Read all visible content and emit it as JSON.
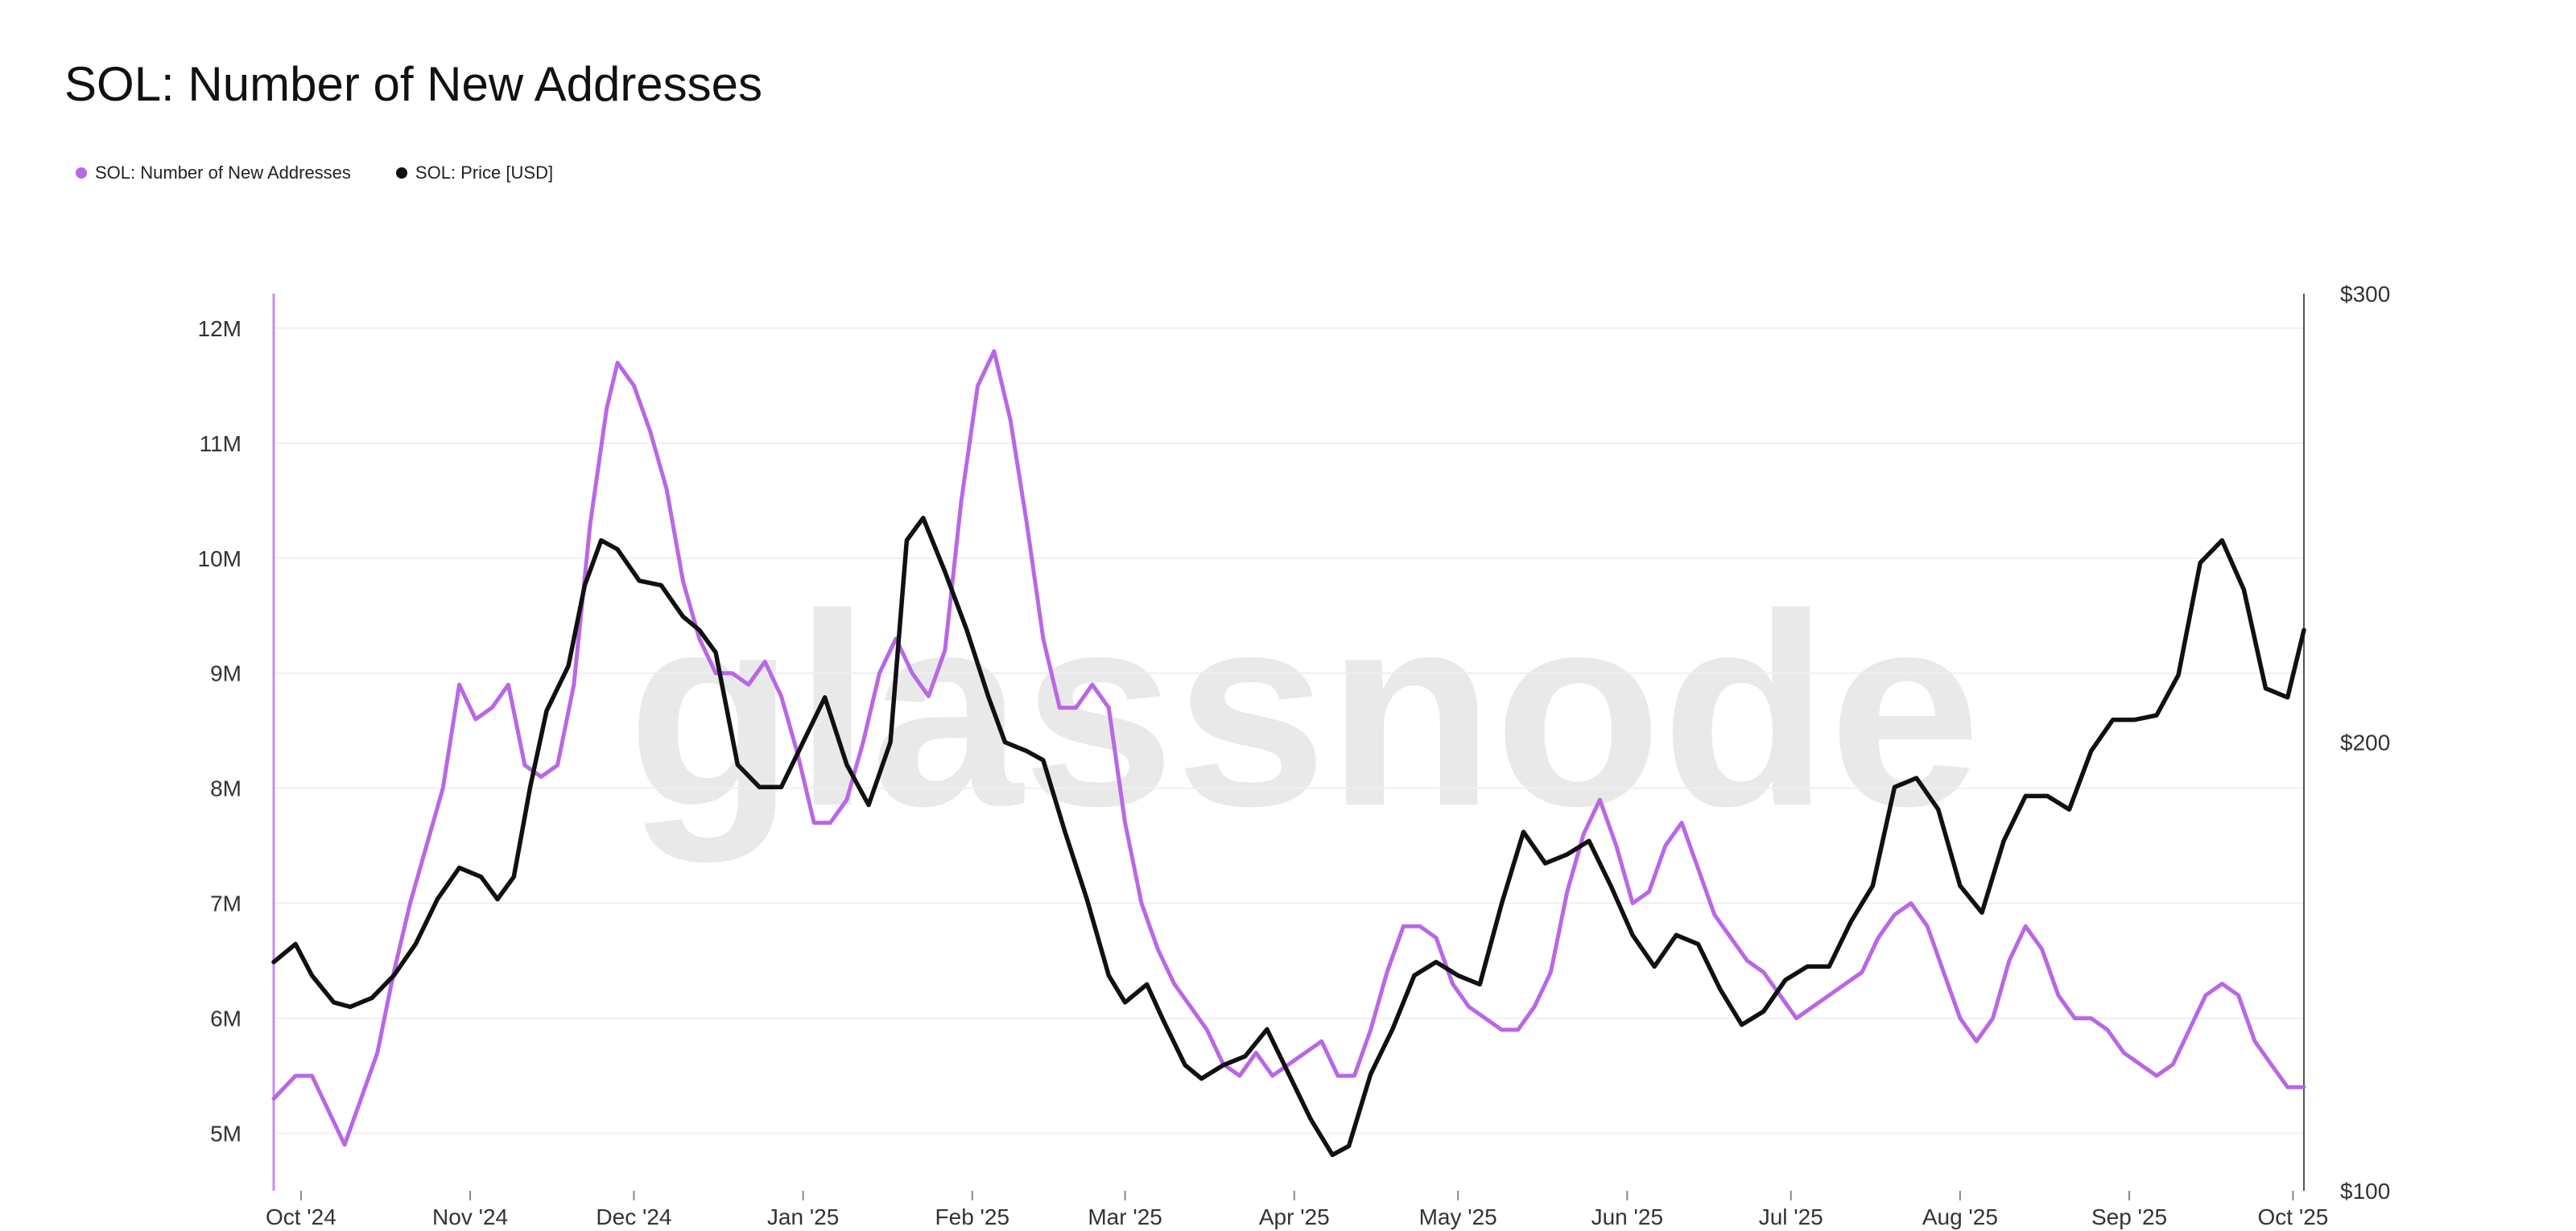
{
  "chart_data": {
    "type": "line",
    "title": "SOL: Number of New Addresses",
    "watermark": "glassnode",
    "legend": [
      {
        "label": "SOL: Number of New Addresses",
        "color": "#b967e6"
      },
      {
        "label": "SOL: Price [USD]",
        "color": "#111111"
      }
    ],
    "x_tick_labels": [
      "Oct '24",
      "Nov '24",
      "Dec '24",
      "Jan '25",
      "Feb '25",
      "Mar '25",
      "Apr '25",
      "May '25",
      "Jun '25",
      "Jul '25",
      "Aug '25",
      "Sep '25",
      "Oct '25"
    ],
    "x_ticks": [
      "2024-10-01",
      "2024-11-01",
      "2024-12-01",
      "2025-01-01",
      "2025-02-01",
      "2025-03-01",
      "2025-04-01",
      "2025-05-01",
      "2025-06-01",
      "2025-07-01",
      "2025-08-01",
      "2025-09-01",
      "2025-10-01"
    ],
    "x_range": [
      "2024-09-26",
      "2025-10-03"
    ],
    "y_left": {
      "ticks": [
        5,
        6,
        7,
        8,
        9,
        10,
        11,
        12
      ],
      "tick_labels": [
        "5M",
        "6M",
        "7M",
        "8M",
        "9M",
        "10M",
        "11M",
        "12M"
      ],
      "lim": [
        4.5,
        12.3
      ],
      "unit": "millions"
    },
    "y_right": {
      "ticks": [
        100,
        200,
        300
      ],
      "tick_labels": [
        "$100",
        "$200",
        "$300"
      ],
      "lim": [
        100,
        300
      ]
    },
    "grid": "horizontal",
    "series": [
      {
        "name": "SOL: Number of New Addresses",
        "color": "#b967e6",
        "axis": "left",
        "points": [
          [
            "2024-09-26",
            5.3
          ],
          [
            "2024-09-30",
            5.5
          ],
          [
            "2024-10-03",
            5.5
          ],
          [
            "2024-10-06",
            5.2
          ],
          [
            "2024-10-09",
            4.9
          ],
          [
            "2024-10-12",
            5.3
          ],
          [
            "2024-10-15",
            5.7
          ],
          [
            "2024-10-18",
            6.4
          ],
          [
            "2024-10-21",
            7.0
          ],
          [
            "2024-10-24",
            7.5
          ],
          [
            "2024-10-27",
            8.0
          ],
          [
            "2024-10-30",
            8.9
          ],
          [
            "2024-11-02",
            8.6
          ],
          [
            "2024-11-05",
            8.7
          ],
          [
            "2024-11-08",
            8.9
          ],
          [
            "2024-11-11",
            8.2
          ],
          [
            "2024-11-14",
            8.1
          ],
          [
            "2024-11-17",
            8.2
          ],
          [
            "2024-11-20",
            8.9
          ],
          [
            "2024-11-23",
            10.3
          ],
          [
            "2024-11-26",
            11.3
          ],
          [
            "2024-11-28",
            11.7
          ],
          [
            "2024-12-01",
            11.5
          ],
          [
            "2024-12-04",
            11.1
          ],
          [
            "2024-12-07",
            10.6
          ],
          [
            "2024-12-10",
            9.8
          ],
          [
            "2024-12-13",
            9.3
          ],
          [
            "2024-12-16",
            9.0
          ],
          [
            "2024-12-19",
            9.0
          ],
          [
            "2024-12-22",
            8.9
          ],
          [
            "2024-12-25",
            9.1
          ],
          [
            "2024-12-28",
            8.8
          ],
          [
            "2024-12-31",
            8.3
          ],
          [
            "2025-01-03",
            7.7
          ],
          [
            "2025-01-06",
            7.7
          ],
          [
            "2025-01-09",
            7.9
          ],
          [
            "2025-01-12",
            8.4
          ],
          [
            "2025-01-15",
            9.0
          ],
          [
            "2025-01-18",
            9.3
          ],
          [
            "2025-01-21",
            9.0
          ],
          [
            "2025-01-24",
            8.8
          ],
          [
            "2025-01-27",
            9.2
          ],
          [
            "2025-01-30",
            10.5
          ],
          [
            "2025-02-02",
            11.5
          ],
          [
            "2025-02-05",
            11.8
          ],
          [
            "2025-02-08",
            11.2
          ],
          [
            "2025-02-11",
            10.3
          ],
          [
            "2025-02-14",
            9.3
          ],
          [
            "2025-02-17",
            8.7
          ],
          [
            "2025-02-20",
            8.7
          ],
          [
            "2025-02-23",
            8.9
          ],
          [
            "2025-02-26",
            8.7
          ],
          [
            "2025-03-01",
            7.7
          ],
          [
            "2025-03-04",
            7.0
          ],
          [
            "2025-03-07",
            6.6
          ],
          [
            "2025-03-10",
            6.3
          ],
          [
            "2025-03-13",
            6.1
          ],
          [
            "2025-03-16",
            5.9
          ],
          [
            "2025-03-19",
            5.6
          ],
          [
            "2025-03-22",
            5.5
          ],
          [
            "2025-03-25",
            5.7
          ],
          [
            "2025-03-28",
            5.5
          ],
          [
            "2025-03-31",
            5.6
          ],
          [
            "2025-04-03",
            5.7
          ],
          [
            "2025-04-06",
            5.8
          ],
          [
            "2025-04-09",
            5.5
          ],
          [
            "2025-04-12",
            5.5
          ],
          [
            "2025-04-15",
            5.9
          ],
          [
            "2025-04-18",
            6.4
          ],
          [
            "2025-04-21",
            6.8
          ],
          [
            "2025-04-24",
            6.8
          ],
          [
            "2025-04-27",
            6.7
          ],
          [
            "2025-04-30",
            6.3
          ],
          [
            "2025-05-03",
            6.1
          ],
          [
            "2025-05-06",
            6.0
          ],
          [
            "2025-05-09",
            5.9
          ],
          [
            "2025-05-12",
            5.9
          ],
          [
            "2025-05-15",
            6.1
          ],
          [
            "2025-05-18",
            6.4
          ],
          [
            "2025-05-21",
            7.1
          ],
          [
            "2025-05-24",
            7.6
          ],
          [
            "2025-05-27",
            7.9
          ],
          [
            "2025-05-30",
            7.5
          ],
          [
            "2025-06-02",
            7.0
          ],
          [
            "2025-06-05",
            7.1
          ],
          [
            "2025-06-08",
            7.5
          ],
          [
            "2025-06-11",
            7.7
          ],
          [
            "2025-06-14",
            7.3
          ],
          [
            "2025-06-17",
            6.9
          ],
          [
            "2025-06-20",
            6.7
          ],
          [
            "2025-06-23",
            6.5
          ],
          [
            "2025-06-26",
            6.4
          ],
          [
            "2025-06-29",
            6.2
          ],
          [
            "2025-07-02",
            6.0
          ],
          [
            "2025-07-05",
            6.1
          ],
          [
            "2025-07-08",
            6.2
          ],
          [
            "2025-07-11",
            6.3
          ],
          [
            "2025-07-14",
            6.4
          ],
          [
            "2025-07-17",
            6.7
          ],
          [
            "2025-07-20",
            6.9
          ],
          [
            "2025-07-23",
            7.0
          ],
          [
            "2025-07-26",
            6.8
          ],
          [
            "2025-07-29",
            6.4
          ],
          [
            "2025-08-01",
            6.0
          ],
          [
            "2025-08-04",
            5.8
          ],
          [
            "2025-08-07",
            6.0
          ],
          [
            "2025-08-10",
            6.5
          ],
          [
            "2025-08-13",
            6.8
          ],
          [
            "2025-08-16",
            6.6
          ],
          [
            "2025-08-19",
            6.2
          ],
          [
            "2025-08-22",
            6.0
          ],
          [
            "2025-08-25",
            6.0
          ],
          [
            "2025-08-28",
            5.9
          ],
          [
            "2025-08-31",
            5.7
          ],
          [
            "2025-09-03",
            5.6
          ],
          [
            "2025-09-06",
            5.5
          ],
          [
            "2025-09-09",
            5.6
          ],
          [
            "2025-09-12",
            5.9
          ],
          [
            "2025-09-15",
            6.2
          ],
          [
            "2025-09-18",
            6.3
          ],
          [
            "2025-09-21",
            6.2
          ],
          [
            "2025-09-24",
            5.8
          ],
          [
            "2025-09-27",
            5.6
          ],
          [
            "2025-09-30",
            5.4
          ],
          [
            "2025-10-03",
            5.4
          ]
        ]
      },
      {
        "name": "SOL: Price [USD]",
        "color": "#111111",
        "axis": "right",
        "points": [
          [
            "2024-09-26",
            151
          ],
          [
            "2024-09-30",
            155
          ],
          [
            "2024-10-03",
            148
          ],
          [
            "2024-10-07",
            142
          ],
          [
            "2024-10-10",
            141
          ],
          [
            "2024-10-14",
            143
          ],
          [
            "2024-10-18",
            148
          ],
          [
            "2024-10-22",
            155
          ],
          [
            "2024-10-26",
            165
          ],
          [
            "2024-10-30",
            172
          ],
          [
            "2024-11-03",
            170
          ],
          [
            "2024-11-06",
            165
          ],
          [
            "2024-11-09",
            170
          ],
          [
            "2024-11-12",
            190
          ],
          [
            "2024-11-15",
            207
          ],
          [
            "2024-11-19",
            217
          ],
          [
            "2024-11-22",
            235
          ],
          [
            "2024-11-25",
            245
          ],
          [
            "2024-11-28",
            243
          ],
          [
            "2024-12-02",
            236
          ],
          [
            "2024-12-06",
            235
          ],
          [
            "2024-12-10",
            228
          ],
          [
            "2024-12-13",
            225
          ],
          [
            "2024-12-16",
            220
          ],
          [
            "2024-12-20",
            195
          ],
          [
            "2024-12-24",
            190
          ],
          [
            "2024-12-28",
            190
          ],
          [
            "2025-01-01",
            200
          ],
          [
            "2025-01-05",
            210
          ],
          [
            "2025-01-09",
            195
          ],
          [
            "2025-01-13",
            186
          ],
          [
            "2025-01-17",
            200
          ],
          [
            "2025-01-20",
            245
          ],
          [
            "2025-01-23",
            250
          ],
          [
            "2025-01-27",
            238
          ],
          [
            "2025-01-31",
            225
          ],
          [
            "2025-02-04",
            210
          ],
          [
            "2025-02-07",
            200
          ],
          [
            "2025-02-11",
            198
          ],
          [
            "2025-02-14",
            196
          ],
          [
            "2025-02-18",
            180
          ],
          [
            "2025-02-22",
            165
          ],
          [
            "2025-02-26",
            148
          ],
          [
            "2025-03-01",
            142
          ],
          [
            "2025-03-05",
            146
          ],
          [
            "2025-03-08",
            138
          ],
          [
            "2025-03-12",
            128
          ],
          [
            "2025-03-15",
            125
          ],
          [
            "2025-03-19",
            128
          ],
          [
            "2025-03-23",
            130
          ],
          [
            "2025-03-27",
            136
          ],
          [
            "2025-03-31",
            126
          ],
          [
            "2025-04-04",
            116
          ],
          [
            "2025-04-08",
            108
          ],
          [
            "2025-04-11",
            110
          ],
          [
            "2025-04-15",
            126
          ],
          [
            "2025-04-19",
            136
          ],
          [
            "2025-04-23",
            148
          ],
          [
            "2025-04-27",
            151
          ],
          [
            "2025-05-01",
            148
          ],
          [
            "2025-05-05",
            146
          ],
          [
            "2025-05-09",
            164
          ],
          [
            "2025-05-13",
            180
          ],
          [
            "2025-05-17",
            173
          ],
          [
            "2025-05-21",
            175
          ],
          [
            "2025-05-25",
            178
          ],
          [
            "2025-05-29",
            168
          ],
          [
            "2025-06-02",
            157
          ],
          [
            "2025-06-06",
            150
          ],
          [
            "2025-06-10",
            157
          ],
          [
            "2025-06-14",
            155
          ],
          [
            "2025-06-18",
            145
          ],
          [
            "2025-06-22",
            137
          ],
          [
            "2025-06-26",
            140
          ],
          [
            "2025-06-30",
            147
          ],
          [
            "2025-07-04",
            150
          ],
          [
            "2025-07-08",
            150
          ],
          [
            "2025-07-12",
            160
          ],
          [
            "2025-07-16",
            168
          ],
          [
            "2025-07-20",
            190
          ],
          [
            "2025-07-24",
            192
          ],
          [
            "2025-07-28",
            185
          ],
          [
            "2025-08-01",
            168
          ],
          [
            "2025-08-05",
            162
          ],
          [
            "2025-08-09",
            178
          ],
          [
            "2025-08-13",
            188
          ],
          [
            "2025-08-17",
            188
          ],
          [
            "2025-08-21",
            185
          ],
          [
            "2025-08-25",
            198
          ],
          [
            "2025-08-29",
            205
          ],
          [
            "2025-09-02",
            205
          ],
          [
            "2025-09-06",
            206
          ],
          [
            "2025-09-10",
            215
          ],
          [
            "2025-09-14",
            240
          ],
          [
            "2025-09-18",
            245
          ],
          [
            "2025-09-22",
            234
          ],
          [
            "2025-09-26",
            212
          ],
          [
            "2025-09-30",
            210
          ],
          [
            "2025-10-03",
            225
          ]
        ]
      }
    ]
  }
}
